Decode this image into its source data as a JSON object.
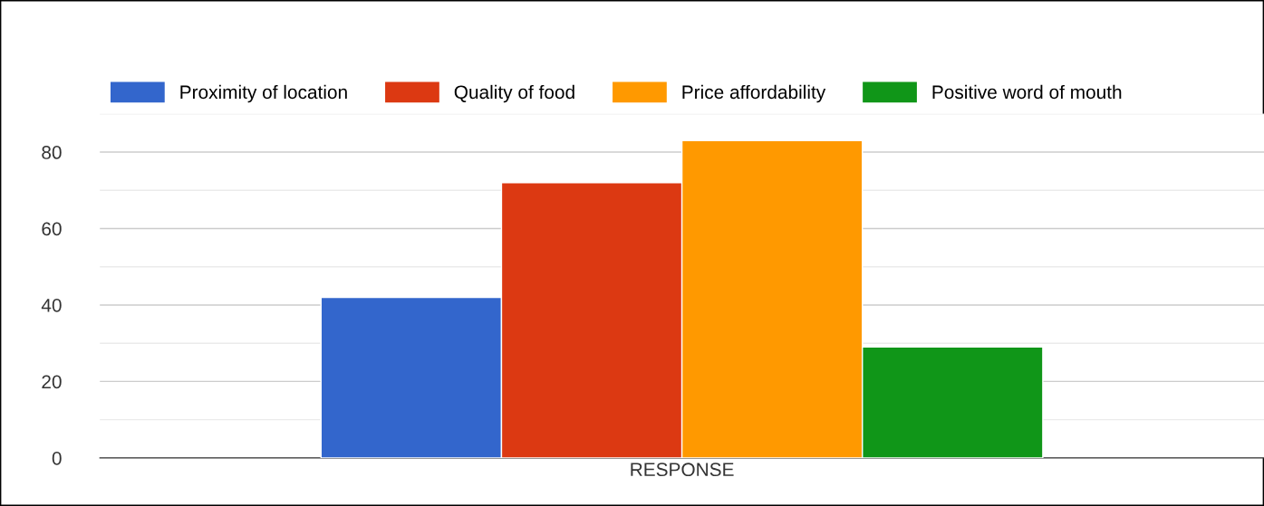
{
  "chart_data": {
    "type": "bar",
    "categories": [
      "RESPONSE"
    ],
    "series": [
      {
        "name": "Proximity of location",
        "color": "#3366cc",
        "values": [
          42
        ]
      },
      {
        "name": "Quality of food",
        "color": "#dc3912",
        "values": [
          72
        ]
      },
      {
        "name": "Price affordability",
        "color": "#ff9900",
        "values": [
          83
        ]
      },
      {
        "name": "Positive word of mouth",
        "color": "#109618",
        "values": [
          29
        ]
      }
    ],
    "ylim": [
      0,
      90
    ],
    "yticks": [
      0,
      {
        "value": 10,
        "label": null
      },
      20,
      {
        "value": 30,
        "label": null
      },
      40,
      {
        "value": 50,
        "label": null
      },
      60,
      {
        "value": 70,
        "label": null
      },
      80,
      {
        "value": 90,
        "label": null
      }
    ],
    "grid": "y",
    "legend": "top"
  }
}
